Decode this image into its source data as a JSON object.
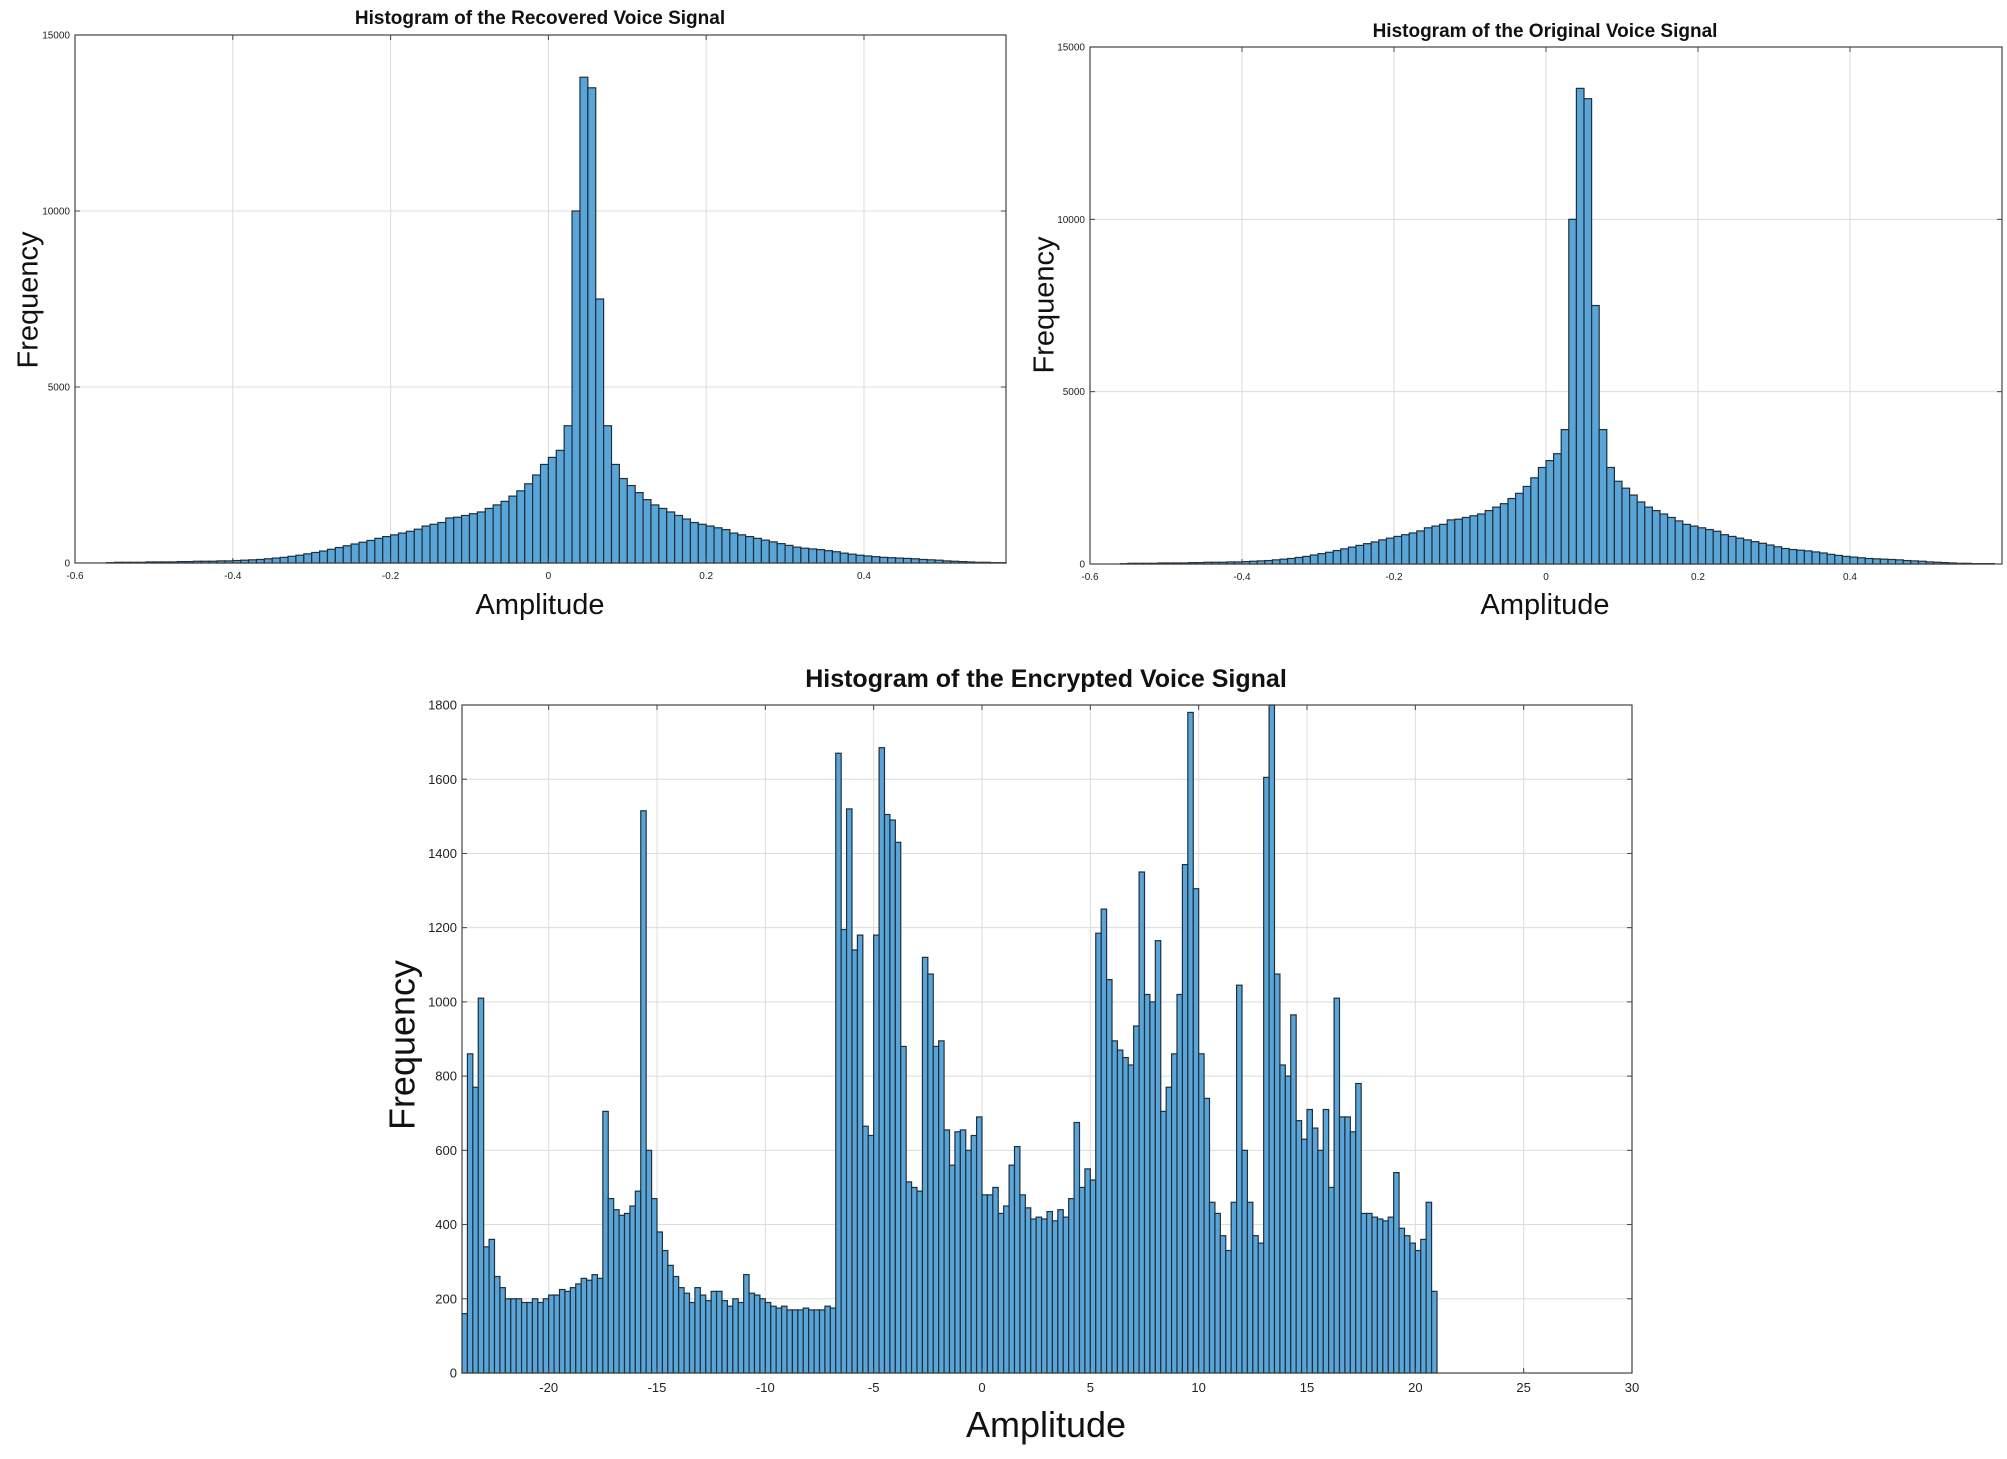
{
  "chart_data": [
    {
      "type": "bar",
      "title": "Histogram of the Recovered Voice Signal",
      "xlabel": "Amplitude",
      "ylabel": "Frequency",
      "xlim": [
        -0.6,
        0.58
      ],
      "ylim": [
        0,
        15000
      ],
      "xticks": [
        -0.6,
        -0.4,
        -0.2,
        0,
        0.2,
        0.4
      ],
      "xtick_labels": [
        "-0.6",
        "-0.4",
        "-0.2",
        "0",
        "0.2",
        "0.4"
      ],
      "yticks": [
        0,
        5000,
        10000,
        15000
      ],
      "ytick_labels": [
        "0",
        "5000",
        "10000",
        "15000"
      ],
      "grid": true,
      "color": "#5aa5d8",
      "bin_start": -0.6,
      "bin_width": 0.01,
      "values": [
        0,
        0,
        0,
        0,
        10,
        20,
        20,
        20,
        20,
        30,
        30,
        30,
        30,
        40,
        40,
        50,
        50,
        50,
        60,
        60,
        70,
        80,
        90,
        100,
        120,
        140,
        160,
        190,
        220,
        260,
        300,
        340,
        390,
        440,
        490,
        540,
        590,
        640,
        700,
        750,
        800,
        850,
        900,
        960,
        1050,
        1100,
        1150,
        1280,
        1300,
        1350,
        1400,
        1450,
        1550,
        1650,
        1750,
        1900,
        2050,
        2250,
        2500,
        2800,
        3000,
        3200,
        3900,
        10000,
        13800,
        13500,
        7500,
        3900,
        2800,
        2400,
        2200,
        2000,
        1800,
        1650,
        1550,
        1450,
        1350,
        1250,
        1150,
        1100,
        1050,
        1000,
        950,
        850,
        800,
        750,
        700,
        650,
        600,
        550,
        500,
        450,
        420,
        400,
        380,
        350,
        320,
        280,
        250,
        220,
        200,
        180,
        160,
        150,
        140,
        130,
        120,
        100,
        90,
        80,
        60,
        50,
        40,
        30,
        20,
        20,
        10,
        10,
        10,
        0
      ]
    },
    {
      "type": "bar",
      "title": "Histogram of the Original Voice Signal",
      "xlabel": "Amplitude",
      "ylabel": "Frequency",
      "xlim": [
        -0.6,
        0.6
      ],
      "ylim": [
        0,
        15000
      ],
      "xticks": [
        -0.6,
        -0.4,
        -0.2,
        0,
        0.2,
        0.4
      ],
      "xtick_labels": [
        "-0.6",
        "-0.4",
        "-0.2",
        "0",
        "0.2",
        "0.4"
      ],
      "yticks": [
        0,
        5000,
        10000,
        15000
      ],
      "ytick_labels": [
        "0",
        "5000",
        "10000",
        "15000"
      ],
      "grid": true,
      "color": "#5aa5d8",
      "bin_start": -0.6,
      "bin_width": 0.01,
      "values": [
        0,
        0,
        0,
        0,
        10,
        20,
        20,
        20,
        20,
        30,
        30,
        30,
        30,
        40,
        40,
        50,
        50,
        50,
        60,
        60,
        70,
        80,
        90,
        100,
        120,
        140,
        160,
        190,
        220,
        260,
        300,
        340,
        390,
        440,
        490,
        540,
        590,
        640,
        700,
        750,
        800,
        850,
        900,
        960,
        1050,
        1100,
        1150,
        1280,
        1300,
        1350,
        1400,
        1450,
        1550,
        1650,
        1750,
        1900,
        2050,
        2250,
        2500,
        2800,
        3000,
        3200,
        3900,
        10000,
        13800,
        13500,
        7500,
        3900,
        2800,
        2400,
        2200,
        2000,
        1800,
        1650,
        1550,
        1450,
        1350,
        1250,
        1150,
        1100,
        1050,
        1000,
        950,
        850,
        800,
        750,
        700,
        650,
        600,
        550,
        500,
        450,
        420,
        400,
        380,
        350,
        320,
        280,
        250,
        220,
        200,
        180,
        160,
        150,
        140,
        130,
        120,
        100,
        90,
        80,
        60,
        50,
        40,
        30,
        20,
        20,
        10,
        10,
        10,
        0
      ]
    },
    {
      "type": "bar",
      "title": "Histogram of the Encrypted Voice Signal",
      "xlabel": "Amplitude",
      "ylabel": "Frequency",
      "xlim": [
        -24,
        30
      ],
      "ylim": [
        0,
        1800
      ],
      "xticks": [
        -20,
        -15,
        -10,
        -5,
        0,
        5,
        10,
        15,
        20,
        25,
        30
      ],
      "xtick_labels": [
        "-20",
        "-15",
        "-10",
        "-5",
        "0",
        "5",
        "10",
        "15",
        "20",
        "25",
        "30"
      ],
      "yticks": [
        0,
        200,
        400,
        600,
        800,
        1000,
        1200,
        1400,
        1600,
        1800
      ],
      "ytick_labels": [
        "0",
        "200",
        "400",
        "600",
        "800",
        "1000",
        "1200",
        "1400",
        "1600",
        "1800"
      ],
      "grid": true,
      "color": "#5aa5d8",
      "bin_start": -24,
      "bin_width": 0.25,
      "values": [
        160,
        860,
        770,
        1010,
        340,
        360,
        260,
        230,
        200,
        200,
        200,
        190,
        190,
        200,
        190,
        200,
        210,
        210,
        225,
        220,
        230,
        240,
        255,
        250,
        265,
        255,
        705,
        470,
        440,
        425,
        430,
        450,
        490,
        1515,
        600,
        470,
        380,
        330,
        290,
        260,
        230,
        215,
        190,
        230,
        210,
        195,
        220,
        220,
        195,
        180,
        200,
        190,
        265,
        215,
        210,
        200,
        190,
        180,
        175,
        180,
        170,
        170,
        170,
        175,
        170,
        170,
        170,
        180,
        175,
        1670,
        1195,
        1520,
        1140,
        1180,
        665,
        640,
        1180,
        1685,
        1505,
        1490,
        1430,
        880,
        515,
        500,
        490,
        1120,
        1075,
        880,
        895,
        655,
        560,
        650,
        655,
        600,
        640,
        690,
        480,
        480,
        500,
        430,
        450,
        560,
        610,
        480,
        445,
        415,
        420,
        415,
        435,
        410,
        440,
        420,
        470,
        675,
        500,
        550,
        520,
        1185,
        1250,
        1060,
        895,
        870,
        850,
        830,
        935,
        1350,
        1020,
        1000,
        1165,
        705,
        770,
        860,
        1020,
        1370,
        1780,
        1305,
        860,
        740,
        460,
        430,
        370,
        330,
        460,
        1045,
        600,
        460,
        370,
        350,
        1605,
        1800,
        1075,
        830,
        800,
        965,
        680,
        630,
        710,
        660,
        600,
        710,
        500,
        1010,
        690,
        690,
        650,
        780,
        430,
        430,
        420,
        415,
        410,
        420,
        540,
        390,
        370,
        350,
        330,
        360,
        460,
        220
      ]
    }
  ]
}
